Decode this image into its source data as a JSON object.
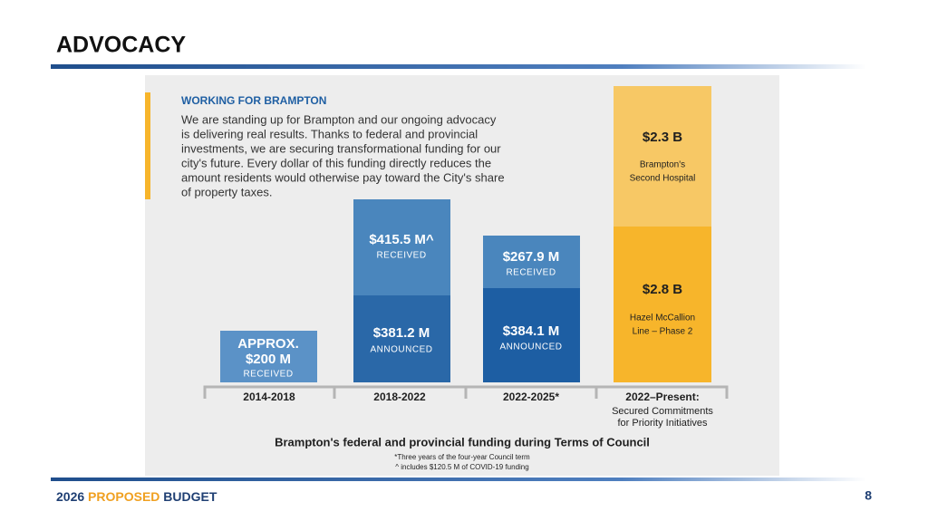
{
  "header": {
    "title": "ADVOCACY"
  },
  "panel": {
    "heading": "WORKING FOR BRAMPTON",
    "paragraph": [
      "We are standing up for Brampton and our ongoing advocacy",
      "is delivering real results. Thanks to federal and provincial",
      "investments, we are securing transformational funding for our",
      "city's future. Every dollar of this funding directly reduces the",
      "amount residents would otherwise pay toward the City's share",
      "of property taxes."
    ],
    "bars": [
      {
        "period": "2014-2018",
        "segments": [
          {
            "amount": [
              "APPROX.",
              "$200 M"
            ],
            "note": [
              "RECEIVED"
            ]
          }
        ]
      },
      {
        "period": "2018-2022",
        "segments": [
          {
            "amount": [
              "$415.5 M^"
            ],
            "note": [
              "RECEIVED"
            ]
          },
          {
            "amount": [
              "$381.2 M"
            ],
            "note": [
              "ANNOUNCED"
            ]
          }
        ]
      },
      {
        "period": "2022-2025*",
        "segments": [
          {
            "amount": [
              "$267.9 M"
            ],
            "note": [
              "RECEIVED"
            ]
          },
          {
            "amount": [
              "$384.1 M"
            ],
            "note": [
              "ANNOUNCED"
            ]
          }
        ]
      },
      {
        "period": "2022–Present:",
        "subtitle": [
          "Secured Commitments",
          "for Priority Initiatives"
        ],
        "segments": [
          {
            "amount": [
              "$2.3 B"
            ],
            "note": [
              "Brampton's",
              "Second Hospital"
            ]
          },
          {
            "amount": [
              "$2.8 B"
            ],
            "note": [
              "Hazel McCallion",
              "Line – Phase 2"
            ]
          }
        ]
      }
    ],
    "caption": "Brampton's federal and provincial funding during Terms of Council",
    "footnotes": [
      "*Three years of the four-year Council term",
      "^ includes $120.5 M of COVID-19 funding"
    ]
  },
  "footer": {
    "prefix": "2026",
    "highlight": "PROPOSED",
    "suffix": "BUDGET",
    "page": "8"
  }
}
